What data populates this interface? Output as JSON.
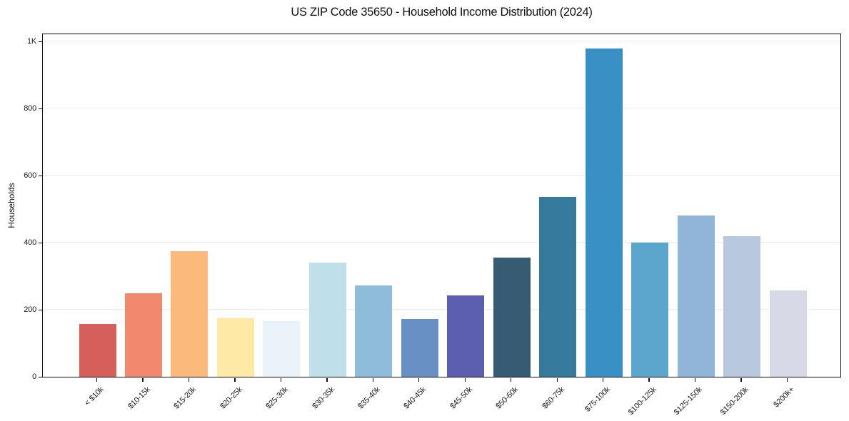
{
  "chart_data": {
    "type": "bar",
    "title": "US ZIP Code 35650 - Household Income Distribution (2024)",
    "xlabel": "",
    "ylabel": "Households",
    "ylim": [
      0,
      1025
    ],
    "grid": true,
    "legend": null,
    "ytick_values": [
      0,
      200,
      400,
      600,
      800,
      1000
    ],
    "ytick_labels": [
      "0",
      "200",
      "400",
      "600",
      "800",
      "1K"
    ],
    "categories": [
      "< $10k",
      "$10-15k",
      "$15-20k",
      "$20-25k",
      "$25-30k",
      "$30-35k",
      "$35-40k",
      "$40-45k",
      "$45-50k",
      "$50-60k",
      "$60-75k",
      "$75-100k",
      "$100-125k",
      "$125-150k",
      "$150-200k",
      "$200k+"
    ],
    "values": [
      158,
      248,
      375,
      175,
      165,
      340,
      273,
      172,
      242,
      355,
      535,
      978,
      400,
      480,
      418,
      258
    ],
    "bar_colors": [
      "#d65f5b",
      "#f2896c",
      "#fbb97c",
      "#fde9a5",
      "#e9f2f8",
      "#bfdfeb",
      "#90bcdb",
      "#6890c4",
      "#5c5fae",
      "#365b72",
      "#35799d",
      "#388fc4",
      "#5ca6cc",
      "#91b5d9",
      "#b8c8de",
      "#d8d9e6"
    ],
    "spine_color": "#0e0e0e",
    "gridline_color": "#ebecf0"
  }
}
